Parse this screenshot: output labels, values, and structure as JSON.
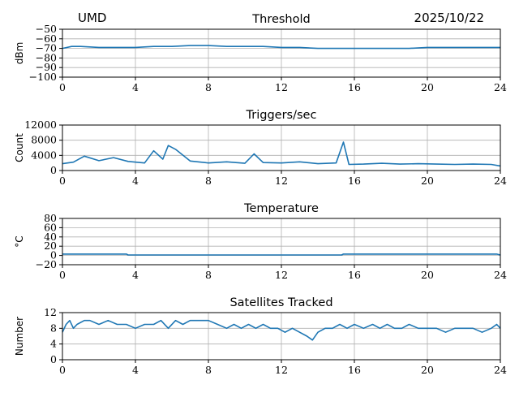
{
  "header": {
    "station": "UMD",
    "date": "2025/10/22"
  },
  "colors": {
    "series": "#1f77b4",
    "grid": "#b0b0b0",
    "axis": "#000000"
  },
  "chart_data": [
    {
      "type": "line",
      "title": "Threshold",
      "ylabel": "dBm",
      "xlim": [
        0,
        24
      ],
      "ylim": [
        -100,
        -50
      ],
      "xticks": [
        0,
        4,
        8,
        12,
        16,
        20,
        24
      ],
      "yticks": [
        -100,
        -90,
        -80,
        -70,
        -60,
        -50
      ],
      "yticklabels": [
        "−100",
        "−90",
        "−80",
        "−70",
        "−60",
        "−50"
      ],
      "grid": true,
      "series": [
        {
          "x": [
            0,
            0.5,
            1,
            2,
            3,
            4,
            5,
            6,
            7,
            8,
            9,
            10,
            11,
            12,
            13,
            14,
            15,
            16,
            17,
            18,
            19,
            20,
            21,
            22,
            23,
            24
          ],
          "y": [
            -70,
            -68,
            -68,
            -69,
            -69,
            -69,
            -68,
            -68,
            -67,
            -67,
            -68,
            -68,
            -68,
            -69,
            -69,
            -70,
            -70,
            -70,
            -70,
            -70,
            -70,
            -69,
            -69,
            -69,
            -69,
            -69
          ]
        }
      ]
    },
    {
      "type": "line",
      "title": "Triggers/sec",
      "ylabel": "Count",
      "xlim": [
        0,
        24
      ],
      "ylim": [
        0,
        12000
      ],
      "xticks": [
        0,
        4,
        8,
        12,
        16,
        20,
        24
      ],
      "yticks": [
        0,
        4000,
        8000,
        12000
      ],
      "yticklabels": [
        "0",
        "4000",
        "8000",
        "12000"
      ],
      "grid": true,
      "series": [
        {
          "x": [
            0,
            0.6,
            1.2,
            2,
            2.8,
            3.6,
            4.5,
            5.0,
            5.5,
            5.8,
            6.2,
            7,
            8,
            9,
            10,
            10.5,
            11,
            12,
            13,
            14,
            15,
            15.4,
            15.7,
            16.5,
            17.5,
            18.5,
            19.5,
            20.5,
            21.5,
            22.5,
            23.5,
            24
          ],
          "y": [
            1800,
            2200,
            3800,
            2600,
            3400,
            2400,
            2000,
            5200,
            3000,
            6600,
            5600,
            2500,
            2000,
            2300,
            1900,
            4400,
            2100,
            2000,
            2300,
            1800,
            2000,
            7500,
            1600,
            1700,
            1900,
            1700,
            1800,
            1700,
            1600,
            1700,
            1600,
            1200
          ]
        }
      ]
    },
    {
      "type": "line",
      "title": "Temperature",
      "ylabel": "°C",
      "xlim": [
        0,
        24
      ],
      "ylim": [
        -20,
        80
      ],
      "xticks": [
        0,
        4,
        8,
        12,
        16,
        20,
        24
      ],
      "yticks": [
        -20,
        0,
        20,
        40,
        60,
        80
      ],
      "yticklabels": [
        "−20",
        "0",
        "20",
        "40",
        "60",
        "80"
      ],
      "grid": true,
      "series": [
        {
          "x": [
            0,
            3.5,
            3.6,
            15.3,
            15.4,
            23.8,
            24
          ],
          "y": [
            3,
            3,
            1,
            1,
            3,
            3,
            1
          ]
        }
      ]
    },
    {
      "type": "line",
      "title": "Satellites Tracked",
      "ylabel": "Number",
      "xlim": [
        0,
        24
      ],
      "ylim": [
        0,
        12
      ],
      "xticks": [
        0,
        4,
        8,
        12,
        16,
        20,
        24
      ],
      "yticks": [
        0,
        4,
        8,
        12
      ],
      "yticklabels": [
        "0",
        "4",
        "8",
        "12"
      ],
      "grid": true,
      "series": [
        {
          "x": [
            0,
            0.2,
            0.4,
            0.6,
            0.8,
            1.2,
            1.5,
            2,
            2.5,
            3,
            3.5,
            4,
            4.5,
            5,
            5.4,
            5.8,
            6.2,
            6.6,
            7,
            7.5,
            8,
            8.5,
            9,
            9.4,
            9.8,
            10.2,
            10.6,
            11,
            11.4,
            11.8,
            12.2,
            12.6,
            13,
            13.4,
            13.7,
            14,
            14.4,
            14.8,
            15.2,
            15.6,
            16,
            16.5,
            17,
            17.4,
            17.8,
            18.2,
            18.6,
            19,
            19.5,
            20,
            20.5,
            21,
            21.5,
            22,
            22.5,
            23,
            23.5,
            23.8,
            24
          ],
          "y": [
            7,
            9,
            10,
            8,
            9,
            10,
            10,
            9,
            10,
            9,
            9,
            8,
            9,
            9,
            10,
            8,
            10,
            9,
            10,
            10,
            10,
            9,
            8,
            9,
            8,
            9,
            8,
            9,
            8,
            8,
            7,
            8,
            7,
            6,
            5,
            7,
            8,
            8,
            9,
            8,
            9,
            8,
            9,
            8,
            9,
            8,
            8,
            9,
            8,
            8,
            8,
            7,
            8,
            8,
            8,
            7,
            8,
            9,
            8
          ]
        }
      ]
    }
  ]
}
